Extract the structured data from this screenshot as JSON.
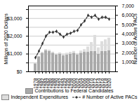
{
  "chart_data": {
    "type": "bar",
    "stacked": true,
    "categories": [
      "1978",
      "1980",
      "1982",
      "1984",
      "1986",
      "1988",
      "1990",
      "1992",
      "1994",
      "1996",
      "1998",
      "2000",
      "2002",
      "2004",
      "2006",
      "2008",
      "2010",
      "2012",
      "2014",
      "2016",
      "2018",
      "2020"
    ],
    "series": [
      {
        "name": "Contributions to Federal Candidates",
        "color": "#aaaaaa",
        "values": [
          450,
          850,
          1050,
          1200,
          1150,
          1050,
          950,
          1000,
          900,
          950,
          1000,
          1050,
          950,
          1050,
          1100,
          1100,
          1150,
          1150,
          1000,
          1150,
          1150,
          1200
        ]
      },
      {
        "name": "Independent Expenditures",
        "color": "#dddddd",
        "values": [
          10,
          30,
          50,
          60,
          70,
          60,
          50,
          70,
          60,
          100,
          100,
          100,
          80,
          120,
          150,
          300,
          500,
          900,
          350,
          550,
          650,
          700
        ]
      },
      {
        "name": "# Number of Active PACs",
        "type": "line",
        "axis": "y2",
        "color": "#333333",
        "marker": "diamond",
        "line_style": "dashed",
        "values": [
          1500,
          2200,
          3000,
          3800,
          4200,
          4200,
          4300,
          4000,
          3700,
          4000,
          4100,
          4300,
          4400,
          5000,
          5400,
          6000,
          5800,
          6000,
          5600,
          5800,
          5800,
          5600
        ]
      }
    ],
    "ylabel": "Millions of 2020 Dollars",
    "y2label": "Number of Active PACs",
    "ylim": [
      0,
      3700
    ],
    "yticks": [
      {
        "value": 0,
        "label": "$0"
      },
      {
        "value": 500,
        "label": null
      },
      {
        "value": 1000,
        "label": "$1,000"
      },
      {
        "value": 1500,
        "label": null
      },
      {
        "value": 2000,
        "label": "$2,000"
      },
      {
        "value": 2500,
        "label": null
      },
      {
        "value": 3000,
        "label": "$3,000"
      },
      {
        "value": 3500,
        "label": null
      }
    ],
    "y2lim": [
      0,
      7000
    ],
    "y2ticks": [
      {
        "value": 0,
        "label": null
      },
      {
        "value": 1000,
        "label": "1,000"
      },
      {
        "value": 2000,
        "label": "2,000"
      },
      {
        "value": 3000,
        "label": "3,000"
      },
      {
        "value": 4000,
        "label": "4,000"
      },
      {
        "value": 5000,
        "label": "5,000"
      },
      {
        "value": 6000,
        "label": "6,000"
      },
      {
        "value": 7000,
        "label": "7,000"
      }
    ],
    "grid": true,
    "legend": "bottom"
  }
}
